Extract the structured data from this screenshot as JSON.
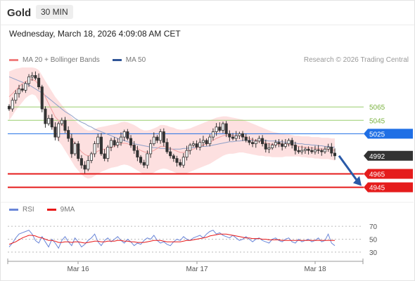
{
  "header": {
    "symbol": "Gold",
    "timeframe": "30 MIN"
  },
  "timestamp": "Wednesday, March 18, 2026 4:09:08 AM CET",
  "legend": {
    "items": [
      {
        "label": "MA 20 + Bollinger Bands",
        "color": "#f08080"
      },
      {
        "label": "MA 50",
        "color": "#2f5597"
      }
    ],
    "source": "Research © 2026 Trading Central"
  },
  "rsi_legend": {
    "items": [
      {
        "label": "RSI",
        "color": "#6a86d8"
      },
      {
        "label": "9MA",
        "color": "#e81818"
      }
    ]
  },
  "chart_data": [
    {
      "type": "candlestick",
      "ylim": [
        4933,
        5124
      ],
      "x_labels": [
        "Mar 16",
        "Mar 17",
        "Mar 18"
      ],
      "levels": [
        {
          "value": 5065,
          "label": "5065",
          "style": "line",
          "color": "#9acd6e"
        },
        {
          "value": 5045,
          "label": "5045",
          "style": "line",
          "color": "#9acd6e"
        },
        {
          "value": 5025,
          "label": "5025",
          "style": "badge",
          "color": "#1f6fe5"
        },
        {
          "value": 4992,
          "label": "4992",
          "style": "badge",
          "color": "#333333"
        },
        {
          "value": 4965,
          "label": "4965",
          "style": "badge",
          "color": "#e51c1c"
        },
        {
          "value": 4945,
          "label": "4945",
          "style": "badge",
          "color": "#e51c1c"
        }
      ],
      "close": [
        5062,
        5075,
        5085,
        5092,
        5090,
        5100,
        5110,
        5112,
        5108,
        5095,
        5062,
        5040,
        5048,
        5035,
        5020,
        5040,
        5045,
        5030,
        5018,
        4995,
        5010,
        4988,
        4978,
        4972,
        4985,
        4995,
        5010,
        5020,
        4995,
        4988,
        5005,
        5015,
        5008,
        5012,
        5020,
        5028,
        5018,
        5008,
        5000,
        4990,
        4982,
        4978,
        4995,
        5010,
        5020,
        5015,
        5028,
        5012,
        4998,
        4992,
        4988,
        4982,
        4978,
        4990,
        5000,
        5008,
        5010,
        5005,
        5012,
        5015,
        5010,
        5020,
        5028,
        5035,
        5030,
        5040,
        5025,
        5020,
        5018,
        5022,
        5025,
        5020,
        5015,
        5012,
        5010,
        5014,
        5018,
        5010,
        5002,
        5004,
        5008,
        5012,
        5010,
        5006,
        5010,
        5015,
        5008,
        5000,
        4998,
        5000,
        5002,
        5000,
        4998,
        5001,
        5000,
        4998,
        5002,
        5005,
        4996,
        4992
      ],
      "ma20": [
        5080,
        5085,
        5090,
        5095,
        5100,
        5103,
        5105,
        5106,
        5104,
        5098,
        5090,
        5080,
        5070,
        5060,
        5050,
        5045,
        5040,
        5033,
        5025,
        5018,
        5010,
        5004,
        4998,
        4994,
        4992,
        4993,
        4996,
        4999,
        5001,
        5002,
        5003,
        5004,
        5006,
        5008,
        5010,
        5011,
        5010,
        5008,
        5006,
        5003,
        5000,
        4998,
        4997,
        4998,
        5000,
        5003,
        5006,
        5006,
        5005,
        5003,
        5001,
        4999,
        4997,
        4997,
        4998,
        5000,
        5002,
        5004,
        5006,
        5008,
        5010,
        5012,
        5015,
        5018,
        5020,
        5022,
        5023,
        5023,
        5022,
        5022,
        5022,
        5021,
        5020,
        5018,
        5016,
        5015,
        5014,
        5013,
        5011,
        5010,
        5009,
        5009,
        5009,
        5009,
        5009,
        5009,
        5008,
        5007,
        5006,
        5005,
        5005,
        5004,
        5004,
        5003,
        5003,
        5002,
        5002,
        5002,
        5001,
        5000
      ],
      "bb_upper": [
        5118,
        5120,
        5122,
        5123,
        5124,
        5124,
        5124,
        5124,
        5123,
        5120,
        5112,
        5104,
        5096,
        5088,
        5080,
        5074,
        5068,
        5062,
        5056,
        5050,
        5045,
        5040,
        5036,
        5032,
        5030,
        5030,
        5032,
        5034,
        5035,
        5036,
        5037,
        5038,
        5039,
        5040,
        5042,
        5043,
        5042,
        5040,
        5038,
        5035,
        5032,
        5030,
        5030,
        5031,
        5033,
        5035,
        5038,
        5038,
        5037,
        5035,
        5034,
        5032,
        5031,
        5031,
        5032,
        5033,
        5035,
        5037,
        5039,
        5041,
        5043,
        5045,
        5047,
        5049,
        5050,
        5051,
        5051,
        5050,
        5049,
        5048,
        5047,
        5046,
        5044,
        5042,
        5040,
        5038,
        5036,
        5034,
        5032,
        5030,
        5028,
        5027,
        5026,
        5025,
        5024,
        5024,
        5023,
        5022,
        5022,
        5021,
        5021,
        5021,
        5020,
        5020,
        5020,
        5019,
        5019,
        5019,
        5018,
        5018
      ],
      "bb_lower": [
        5045,
        5052,
        5060,
        5066,
        5072,
        5078,
        5082,
        5084,
        5082,
        5074,
        5064,
        5054,
        5044,
        5034,
        5022,
        5014,
        5008,
        5000,
        4992,
        4984,
        4976,
        4970,
        4964,
        4960,
        4958,
        4959,
        4962,
        4965,
        4968,
        4970,
        4972,
        4974,
        4975,
        4976,
        4978,
        4979,
        4978,
        4976,
        4973,
        4970,
        4967,
        4965,
        4964,
        4965,
        4967,
        4970,
        4972,
        4973,
        4972,
        4970,
        4968,
        4966,
        4965,
        4965,
        4966,
        4968,
        4970,
        4972,
        4974,
        4976,
        4978,
        4980,
        4983,
        4986,
        4989,
        4992,
        4994,
        4995,
        4995,
        4996,
        4997,
        4997,
        4996,
        4995,
        4994,
        4993,
        4992,
        4992,
        4991,
        4991,
        4990,
        4990,
        4990,
        4990,
        4991,
        4991,
        4991,
        4991,
        4991,
        4990,
        4990,
        4989,
        4989,
        4988,
        4988,
        4987,
        4987,
        4987,
        4986,
        4985
      ],
      "ma50": [
        5110,
        5108,
        5106,
        5104,
        5102,
        5100,
        5098,
        5095,
        5092,
        5089,
        5086,
        5082,
        5078,
        5074,
        5070,
        5066,
        5062,
        5058,
        5055,
        5052,
        5048,
        5045,
        5042,
        5040,
        5037,
        5035,
        5032,
        5030,
        5028,
        5026,
        5024,
        5022,
        5020,
        5018,
        5016,
        5015,
        5013,
        5012,
        5010,
        5009,
        5008,
        5007,
        5006,
        5005,
        5004,
        5004,
        5003,
        5003,
        5002,
        5002,
        5002,
        5002,
        5002,
        5003,
        5003,
        5004,
        5004,
        5005,
        5005,
        5006,
        5006,
        5007,
        5008,
        5009,
        5010,
        5011,
        5012,
        5013,
        5013,
        5014,
        5014,
        5015,
        5015,
        5015,
        5015,
        5015,
        5015,
        5015,
        5015,
        5014,
        5014,
        5014,
        5013,
        5013,
        5012,
        5012,
        5011,
        5011,
        5010,
        5010,
        5009,
        5009,
        5008,
        5008,
        5007,
        5007,
        5006,
        5006,
        5005,
        5005
      ]
    },
    {
      "type": "line",
      "title": "RSI",
      "ylim": [
        20,
        80
      ],
      "ticks": [
        70,
        50,
        30
      ],
      "x_labels": [
        "Mar 16",
        "Mar 17",
        "Mar 18"
      ],
      "series": [
        {
          "name": "RSI",
          "color": "#6a86d8",
          "values": [
            38,
            44,
            52,
            58,
            60,
            62,
            64,
            58,
            48,
            44,
            54,
            46,
            38,
            50,
            44,
            36,
            48,
            54,
            46,
            40,
            52,
            46,
            38,
            42,
            48,
            52,
            58,
            46,
            40,
            48,
            52,
            46,
            50,
            54,
            48,
            44,
            50,
            46,
            40,
            44,
            42,
            48,
            52,
            50,
            56,
            48,
            44,
            46,
            42,
            40,
            46,
            50,
            48,
            54,
            50,
            48,
            52,
            54,
            56,
            52,
            58,
            62,
            64,
            58,
            60,
            56,
            54,
            52,
            56,
            52,
            48,
            50,
            54,
            50,
            46,
            50,
            52,
            48,
            46,
            44,
            50,
            52,
            48,
            46,
            50,
            52,
            46,
            44,
            50,
            46,
            48,
            50,
            46,
            48,
            52,
            46,
            48,
            58,
            44,
            40
          ]
        },
        {
          "name": "9MA",
          "color": "#e81818",
          "values": [
            42,
            44,
            46,
            49,
            52,
            54,
            56,
            56,
            55,
            53,
            52,
            50,
            48,
            48,
            47,
            45,
            45,
            46,
            46,
            45,
            46,
            46,
            45,
            44,
            45,
            46,
            47,
            47,
            46,
            46,
            47,
            47,
            47,
            48,
            48,
            47,
            47,
            46,
            46,
            45,
            45,
            45,
            46,
            47,
            48,
            48,
            48,
            47,
            46,
            46,
            46,
            46,
            46,
            47,
            48,
            48,
            49,
            50,
            51,
            52,
            53,
            55,
            56,
            57,
            58,
            58,
            58,
            57,
            56,
            55,
            54,
            53,
            52,
            52,
            51,
            51,
            51,
            50,
            50,
            49,
            49,
            49,
            49,
            48,
            48,
            48,
            48,
            48,
            48,
            48,
            48,
            48,
            48,
            48,
            48,
            48,
            48,
            48,
            48,
            48
          ]
        }
      ]
    }
  ]
}
